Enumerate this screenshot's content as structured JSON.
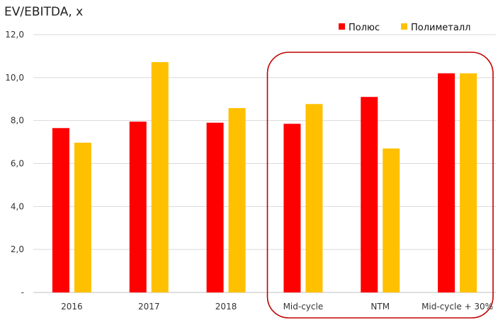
{
  "chart_data": {
    "type": "bar",
    "title": "EV/EBITDA, x",
    "categories": [
      "2016",
      "2017",
      "2018",
      "Mid-cycle",
      "NTM",
      "Mid-cycle + 30%"
    ],
    "series": [
      {
        "name": "Полюс",
        "color": "#ff0000",
        "values": [
          7.65,
          7.95,
          7.9,
          7.85,
          9.1,
          10.2
        ]
      },
      {
        "name": "Полиметалл",
        "color": "#ffc000",
        "values": [
          6.97,
          10.72,
          8.58,
          8.77,
          6.7,
          10.2
        ]
      }
    ],
    "ylim": [
      0,
      12
    ],
    "ytick_values": [
      0,
      2,
      4,
      6,
      8,
      10,
      12
    ],
    "ytick_labels": [
      "-",
      "2,0",
      "4,0",
      "6,0",
      "8,0",
      "10,0",
      "12,0"
    ],
    "grid": true,
    "legend_position": "top-right",
    "highlight": {
      "categories": [
        "Mid-cycle",
        "NTM",
        "Mid-cycle + 30%"
      ],
      "color": "#c00000"
    },
    "xlabel": "",
    "ylabel": ""
  }
}
